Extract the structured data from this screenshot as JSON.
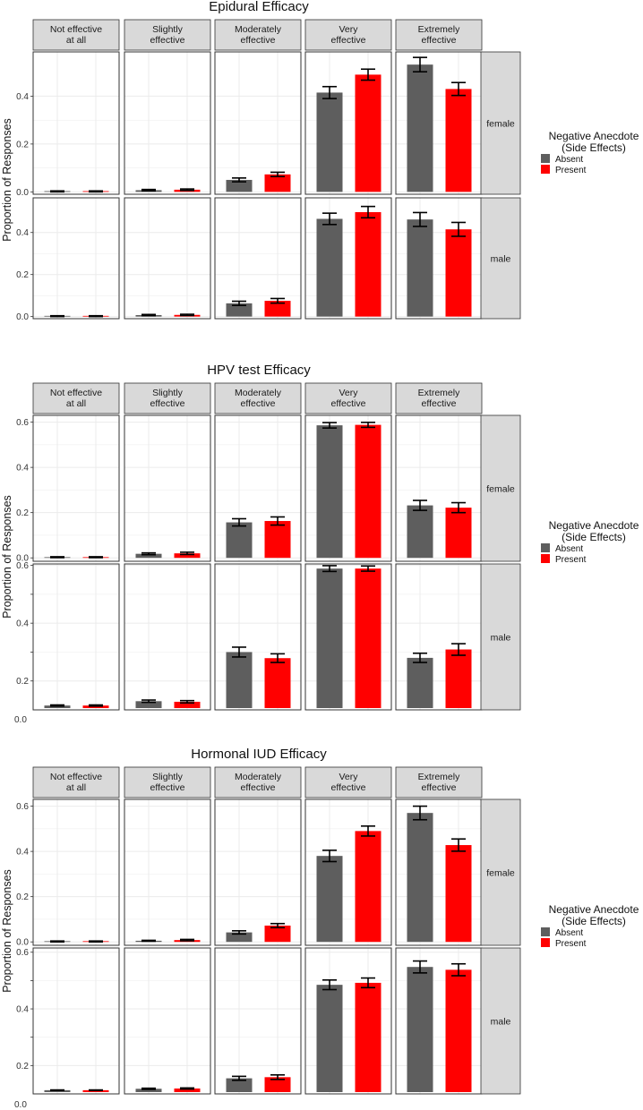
{
  "figure": {
    "ylabel": "Proportion of Responses",
    "facet_cols": [
      "Not effective\nat all",
      "Slightly\neffective",
      "Moderately\neffective",
      "Very\neffective",
      "Extremely\neffective"
    ],
    "facet_rows": [
      "female",
      "male"
    ],
    "legend": {
      "title": "Negative Anecdote\n(Side Effects)",
      "items": [
        {
          "label": "Absent",
          "color": "#5e5e5e"
        },
        {
          "label": "Present",
          "color": "#ff0000"
        }
      ]
    },
    "colors": {
      "absent": "#5e5e5e",
      "present": "#ff0000",
      "strip": "#d9d9d9",
      "grid": "#ebebeb",
      "error": "#000000"
    }
  },
  "chart_data": [
    {
      "type": "bar",
      "title": "Epidural Efficacy",
      "ylabel": "Proportion of Responses",
      "series_names": [
        "Absent",
        "Present"
      ],
      "yticks": [
        [
          "0.0",
          "0.2",
          "0.4"
        ],
        [
          "0.0",
          "0.2",
          "0.4"
        ]
      ],
      "ylims": [
        [
          -0.01,
          0.585
        ],
        [
          -0.01,
          0.565
        ]
      ],
      "extra_ticks": [
        [],
        []
      ],
      "outer_label": "",
      "panels": [
        [
          {
            "values": [
              0.002,
              0.002
            ],
            "errors": [
              0.002,
              0.002
            ]
          },
          {
            "values": [
              0.007,
              0.009
            ],
            "errors": [
              0.003,
              0.003
            ]
          },
          {
            "values": [
              0.05,
              0.073
            ],
            "errors": [
              0.008,
              0.009
            ]
          },
          {
            "values": [
              0.415,
              0.49
            ],
            "errors": [
              0.025,
              0.023
            ]
          },
          {
            "values": [
              0.532,
              0.43
            ],
            "errors": [
              0.03,
              0.027
            ]
          }
        ],
        [
          {
            "values": [
              0.002,
              0.002
            ],
            "errors": [
              0.002,
              0.002
            ]
          },
          {
            "values": [
              0.007,
              0.008
            ],
            "errors": [
              0.003,
              0.003
            ]
          },
          {
            "values": [
              0.063,
              0.075
            ],
            "errors": [
              0.01,
              0.011
            ]
          },
          {
            "values": [
              0.465,
              0.497
            ],
            "errors": [
              0.027,
              0.027
            ]
          },
          {
            "values": [
              0.462,
              0.415
            ],
            "errors": [
              0.033,
              0.033
            ]
          }
        ]
      ]
    },
    {
      "type": "bar",
      "title": "HPV test Efficacy",
      "ylabel": "Proportion of Responses",
      "series_names": [
        "Absent",
        "Present"
      ],
      "yticks": [
        [
          "0.0",
          "0.2",
          "0.4",
          "0.6"
        ],
        [
          "0.2",
          "0.4",
          "0.6"
        ]
      ],
      "ylims": [
        [
          -0.015,
          0.63
        ],
        [
          0.1,
          0.605
        ]
      ],
      "extra_ticks": [
        [],
        [
          0.3,
          0.5
        ]
      ],
      "outer_label": "0.0",
      "panels": [
        [
          {
            "values": [
              0.003,
              0.003
            ],
            "errors": [
              0.002,
              0.002
            ]
          },
          {
            "values": [
              0.018,
              0.02
            ],
            "errors": [
              0.004,
              0.005
            ]
          },
          {
            "values": [
              0.157,
              0.163
            ],
            "errors": [
              0.016,
              0.018
            ]
          },
          {
            "values": [
              0.586,
              0.588
            ],
            "errors": [
              0.012,
              0.011
            ]
          },
          {
            "values": [
              0.232,
              0.222
            ],
            "errors": [
              0.022,
              0.022
            ]
          }
        ],
        [
          {
            "values": [
              0.115,
              0.115
            ],
            "errors": [
              0.002,
              0.002
            ]
          },
          {
            "values": [
              0.13,
              0.128
            ],
            "errors": [
              0.004,
              0.004
            ]
          },
          {
            "values": [
              0.3,
              0.279
            ],
            "errors": [
              0.017,
              0.015
            ]
          },
          {
            "values": [
              0.589,
              0.589
            ],
            "errors": [
              0.01,
              0.009
            ]
          },
          {
            "values": [
              0.28,
              0.309
            ],
            "errors": [
              0.016,
              0.02
            ]
          }
        ]
      ]
    },
    {
      "type": "bar",
      "title": "Hormonal IUD Efficacy",
      "ylabel": "Proportion of Responses",
      "series_names": [
        "Absent",
        "Present"
      ],
      "yticks": [
        [
          "0.0",
          "0.2",
          "0.4",
          "0.6"
        ],
        [
          "0.2",
          "0.4",
          "0.6"
        ]
      ],
      "ylims": [
        [
          -0.015,
          0.63
        ],
        [
          0.1,
          0.615
        ]
      ],
      "extra_ticks": [
        [],
        [
          0.3,
          0.5
        ]
      ],
      "outer_label": "0.0",
      "panels": [
        [
          {
            "values": [
              0.002,
              0.002
            ],
            "errors": [
              0.002,
              0.002
            ]
          },
          {
            "values": [
              0.005,
              0.008
            ],
            "errors": [
              0.002,
              0.003
            ]
          },
          {
            "values": [
              0.042,
              0.072
            ],
            "errors": [
              0.007,
              0.009
            ]
          },
          {
            "values": [
              0.38,
              0.49
            ],
            "errors": [
              0.025,
              0.022
            ]
          },
          {
            "values": [
              0.57,
              0.428
            ],
            "errors": [
              0.03,
              0.027
            ]
          }
        ],
        [
          {
            "values": [
              0.113,
              0.113
            ],
            "errors": [
              0.001,
              0.001
            ]
          },
          {
            "values": [
              0.118,
              0.119
            ],
            "errors": [
              0.002,
              0.002
            ]
          },
          {
            "values": [
              0.155,
              0.159
            ],
            "errors": [
              0.007,
              0.008
            ]
          },
          {
            "values": [
              0.485,
              0.492
            ],
            "errors": [
              0.017,
              0.017
            ]
          },
          {
            "values": [
              0.548,
              0.538
            ],
            "errors": [
              0.021,
              0.021
            ]
          }
        ]
      ]
    }
  ]
}
